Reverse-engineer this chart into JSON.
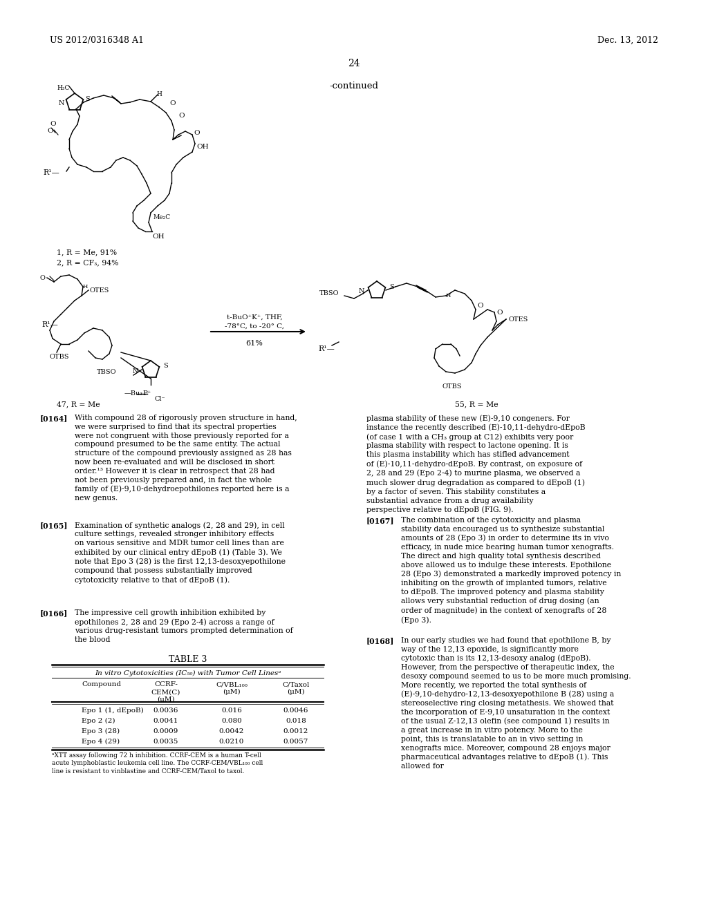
{
  "page_header_left": "US 2012/0316348 A1",
  "page_header_right": "Dec. 13, 2012",
  "page_number": "24",
  "continued_label": "-continued",
  "background_color": "#ffffff",
  "text_color": "#000000",
  "table_title": "TABLE 3",
  "table_subtitle": "In vitro Cytotoxicities (IC₅₀) with Tumor Cell Linesᵃ",
  "table_col_headers": [
    "Compound",
    "CCRF-\nCEM(C)\n(μM)",
    "C/VBL₁₀₀\n(μM)",
    "C/Taxol\n(μM)"
  ],
  "table_rows": [
    [
      "Epo 1 (1, dEpoB)",
      "0.0036",
      "0.016",
      "0.0046"
    ],
    [
      "Epo 2 (2)",
      "0.0041",
      "0.080",
      "0.018"
    ],
    [
      "Epo 3 (28)",
      "0.0009",
      "0.0042",
      "0.0012"
    ],
    [
      "Epo 4 (29)",
      "0.0035",
      "0.0210",
      "0.0057"
    ]
  ],
  "table_footnote": "ᵃXTT assay following 72 h inhibition. CCRF-CEM is a human T-cell acute lymphoblastic leukemia cell line. The CCRF-CEM/VBL₁₀₀ cell line is resistant to vinblastine and CCRF-CEM/Taxol to taxol.",
  "para_0164_label": "[0164]",
  "para_0164_left": "With compound 28 of rigorously proven structure in hand, we were surprised to find that its spectral properties were not congruent with those previously reported for a compound presumed to be the same entity. The actual structure of the compound previously assigned as 28 has now been re-evaluated and will be disclosed in short order.¹³ However it is clear in retrospect that 28 had not been previously prepared and, in fact the whole family of (E)-9,10-dehydroepothilones reported here is a new genus.",
  "para_0165_label": "[0165]",
  "para_0165_left": "Examination of synthetic analogs (2, 28 and 29), in cell culture settings, revealed stronger inhibitory effects on various sensitive and MDR tumor cell lines than are exhibited by our clinical entry dEpoB (1) (Table 3). We note that Epo 3 (28) is the first 12,13-desoxyepothilone compound that possess substantially improved cytotoxicity relative to that of dEpoB (1).",
  "para_0166_label": "[0166]",
  "para_0166_left": "The impressive cell growth inhibition exhibited by epothilones 2, 28 and 29 (Epo 2-4) across a range of various drug-resistant tumors prompted determination of the blood",
  "para_0164_right": "plasma stability of these new (E)-9,10 congeners. For instance the recently described (E)-10,11-dehydro-dEpoB (of case 1 with a CH₃ group at C12) exhibits very poor plasma stability with respect to lactone opening. It is this plasma instability which has stifled advancement of (E)-10,11-dehydro-dEpoB. By contrast, on exposure of 2, 28 and 29 (Epo 2-4) to murine plasma, we observed a much slower drug degradation as compared to dEpoB (1) by a factor of seven. This stability constitutes a substantial advance from a drug availability perspective relative to dEpoB (FIG. 9).",
  "para_0167_label": "[0167]",
  "para_0167_right": "The combination of the cytotoxicity and plasma stability data encouraged us to synthesize substantial amounts of 28 (Epo 3) in order to determine its in vivo efficacy, in nude mice bearing human tumor xenografts. The direct and high quality total synthesis described above allowed us to indulge these interests. Epothilone 28 (Epo 3) demonstrated a markedly improved potency in inhibiting on the growth of implanted tumors, relative to dEpoB. The improved potency and plasma stability allows very substantial reduction of drug dosing (an order of magnitude) in the context of xenografts of 28 (Epo 3).",
  "para_0168_label": "[0168]",
  "para_0168_right": "In our early studies we had found that epothilone B, by way of the 12,13 epoxide, is significantly more cytotoxic than is its 12,13-desoxy analog (dEpoB). However, from the perspective of therapeutic index, the desoxy compound seemed to us to be more much promising. More recently, we reported the total synthesis of (E)-9,10-dehydro-12,13-desoxyepothilone B (28) using a stereoselective ring closing metathesis. We showed that the incorporation of E-9,10 unsaturation in the context of the usual Z-12,13 olefin (see compound 1) results in a great increase in in vitro potency. More to the point, this is translatable to an in vivo setting in xenografts mice. Moreover, compound 28 enjoys major pharmaceutical advantages relative to dEpoB (1). This allowed for"
}
